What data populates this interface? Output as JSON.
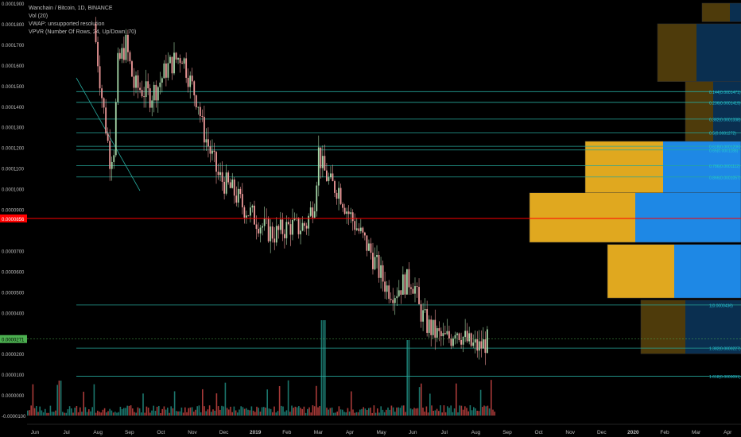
{
  "legend": {
    "title": "Wanchain / Bitcoin, 1D, BINANCE",
    "line2": "Vol (20)",
    "line3": "VWAP: unsupported resolution",
    "line4": "VPVR (Number Of Rows, 24, Up/Down, 70)"
  },
  "colors": {
    "background": "#000000",
    "fib_line": "#26a69a",
    "fib_label": "#26c6da",
    "current_price_line": "#ff0000",
    "current_price_badge": "#ff0000",
    "last_price_badge": "#4caf50",
    "candle_up": "#a5d6a7",
    "candle_down": "#ef9a9a",
    "vpvr_up": "#1e88e5",
    "vpvr_down": "#e0a81f",
    "volume_up": "#26a69a",
    "volume_down": "#ef5350"
  },
  "chart_data": {
    "type": "candlestick",
    "title": "Wanchain / Bitcoin, 1D, BINANCE",
    "y_axis_ticks": [
      "0.0001900",
      "0.0001800",
      "0.0001700",
      "0.0001600",
      "0.0001500",
      "0.0001400",
      "0.0001300",
      "0.0001200",
      "0.0001100",
      "0.0001000",
      "0.0000900",
      "0.0000700",
      "0.0000600",
      "0.0000500",
      "0.0000400",
      "0.0000200",
      "0.0000100",
      "0.0000000",
      "-0.0000100"
    ],
    "ylim": [
      -1e-05,
      0.00019
    ],
    "price_badge": {
      "label": "0.0000856",
      "value": 8.56e-05
    },
    "last_price_badge": {
      "label": "0.0000271",
      "value": 2.71e-05
    },
    "x_axis_ticks": [
      "Jun",
      "Jul",
      "Aug",
      "Sep",
      "Oct",
      "Nov",
      "Dec",
      "2019",
      "Feb",
      "Mar",
      "Apr",
      "May",
      "Jun",
      "Jul",
      "Aug",
      "Sep",
      "Oct",
      "Nov",
      "Dec",
      "2020",
      "Feb",
      "Mar",
      "Apr"
    ],
    "fib_levels": [
      {
        "label": "0.144(0.0001471)",
        "value": 0.0001471
      },
      {
        "label": "0.236(0.0001419)",
        "value": 0.0001419
      },
      {
        "label": "0.382(0.0001338)",
        "value": 0.0001338
      },
      {
        "label": "0.5(0.0001272)",
        "value": 0.0001272
      },
      {
        "label": "0.618(0.0001206)",
        "value": 0.0001206
      },
      {
        "label": "0.65(0.0001188)",
        "value": 0.0001188
      },
      {
        "label": "0.786(0.0001112)",
        "value": 0.0001112
      },
      {
        "label": "0.866(0.0001057)",
        "value": 0.0001057
      },
      {
        "label": "1(0.0000436)",
        "value": 4.36e-05
      },
      {
        "label": "1.382(0.0000227)",
        "value": 2.27e-05
      },
      {
        "label": "1.618(0.0000091)",
        "value": 9.1e-06
      }
    ],
    "price_path": [
      [
        0,
        0.00018
      ],
      [
        2,
        0.000145
      ],
      [
        4,
        0.000115
      ],
      [
        5,
        0.00012
      ],
      [
        6,
        0.00016
      ],
      [
        8,
        0.00017
      ],
      [
        10,
        0.00015
      ],
      [
        12,
        0.000148
      ],
      [
        14,
        0.000145
      ],
      [
        16,
        0.00015
      ],
      [
        18,
        0.000158
      ],
      [
        20,
        0.000162
      ],
      [
        22,
        0.000165
      ],
      [
        24,
        0.000152
      ],
      [
        26,
        0.000142
      ],
      [
        27,
        0.00013
      ],
      [
        29,
        0.000118
      ],
      [
        31,
        0.000106
      ],
      [
        33,
        0.000102
      ],
      [
        35,
        9.8e-05
      ],
      [
        37,
        9.2e-05
      ],
      [
        39,
        8.8e-05
      ],
      [
        41,
        8.4e-05
      ],
      [
        43,
        8e-05
      ],
      [
        45,
        7.8e-05
      ],
      [
        47,
        8e-05
      ],
      [
        49,
        8.2e-05
      ],
      [
        51,
        8.1e-05
      ],
      [
        53,
        8.3e-05
      ],
      [
        55,
        9.5e-05
      ],
      [
        56,
        0.000118
      ],
      [
        57,
        0.00011
      ],
      [
        59,
        0.000102
      ],
      [
        61,
        0.0001
      ],
      [
        63,
        9e-05
      ],
      [
        65,
        8.3e-05
      ],
      [
        67,
        7.6e-05
      ],
      [
        69,
        6.9e-05
      ],
      [
        71,
        6e-05
      ],
      [
        73,
        5.2e-05
      ],
      [
        75,
        5e-05
      ],
      [
        77,
        5.4e-05
      ],
      [
        79,
        5.6e-05
      ],
      [
        80,
        5.2e-05
      ],
      [
        81,
        4.2e-05
      ],
      [
        83,
        3.4e-05
      ],
      [
        85,
        3e-05
      ],
      [
        87,
        2.7e-05
      ],
      [
        89,
        2.8e-05
      ],
      [
        90,
        3.3e-05
      ],
      [
        92,
        2.8e-05
      ],
      [
        94,
        2.4e-05
      ],
      [
        96,
        2.3e-05
      ],
      [
        98,
        2.6e-05
      ]
    ],
    "vpvr_rows": [
      {
        "price_low": 0.000181,
        "price_high": 0.00019,
        "up": 0.2,
        "down": 0.5,
        "highlighted": false
      },
      {
        "price_low": 0.000152,
        "price_high": 0.00018,
        "up": 0.8,
        "down": 0.7,
        "highlighted": false
      },
      {
        "price_low": 0.000122,
        "price_high": 0.000152,
        "up": 0.5,
        "down": 0.5,
        "highlighted": false
      },
      {
        "price_low": 9.8e-05,
        "price_high": 0.000123,
        "up": 1.4,
        "down": 1.4,
        "highlighted": true
      },
      {
        "price_low": 7.4e-05,
        "price_high": 9.8e-05,
        "up": 1.9,
        "down": 1.9,
        "highlighted": true
      },
      {
        "price_low": 4.7e-05,
        "price_high": 7.3e-05,
        "up": 1.2,
        "down": 1.2,
        "highlighted": true
      },
      {
        "price_low": 2e-05,
        "price_high": 4.6e-05,
        "up": 1.0,
        "down": 0.8,
        "highlighted": false
      }
    ]
  }
}
